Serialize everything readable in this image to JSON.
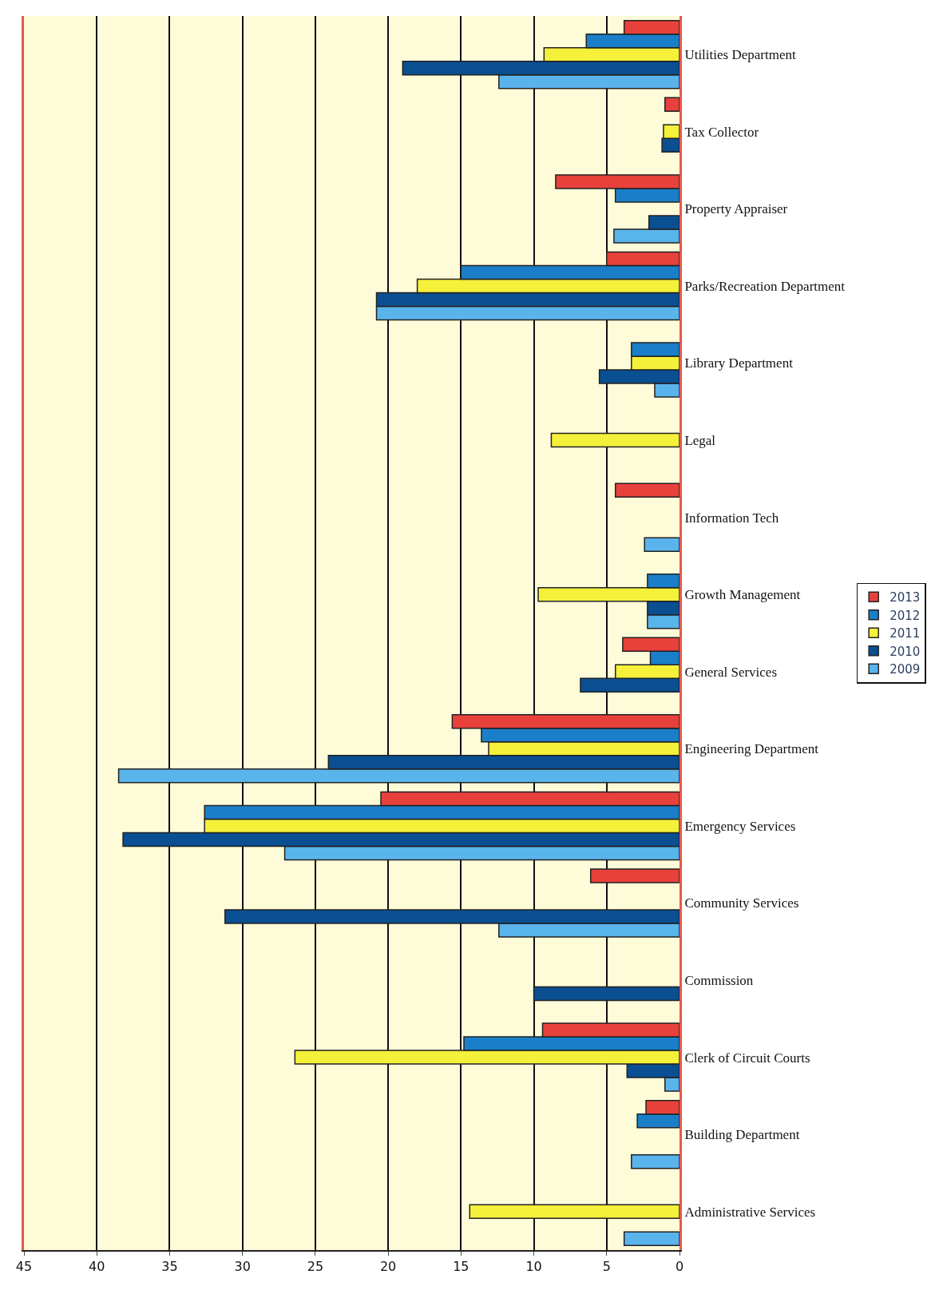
{
  "chart_data": {
    "type": "bar",
    "orientation": "horizontal",
    "categories": [
      "Utilities Department",
      "Tax Collector",
      "Property Appraiser",
      "Parks/Recreation Department",
      "Library Department",
      "Legal",
      "Information Tech",
      "Growth Management",
      "General Services",
      "Engineering Department",
      "Emergency Services",
      "Community Services",
      "Commission",
      "Clerk of Circuit Courts",
      "Building Department",
      "Administrative Services"
    ],
    "series": [
      {
        "name": "2009",
        "color": "#5ab4ec",
        "values": [
          12.4,
          null,
          4.5,
          20.8,
          1.7,
          null,
          2.4,
          2.2,
          null,
          38.5,
          27.1,
          12.4,
          null,
          1.0,
          3.3,
          3.8
        ]
      },
      {
        "name": "2010",
        "color": "#0a4f92",
        "values": [
          19.0,
          1.2,
          2.1,
          20.8,
          5.5,
          null,
          null,
          2.2,
          6.8,
          24.1,
          38.2,
          31.2,
          10.0,
          3.6,
          null,
          null
        ]
      },
      {
        "name": "2011",
        "color": "#f5f03a",
        "values": [
          9.3,
          1.1,
          null,
          18.0,
          3.3,
          8.8,
          null,
          9.7,
          4.4,
          13.1,
          32.6,
          null,
          null,
          26.4,
          null,
          14.4
        ]
      },
      {
        "name": "2012",
        "color": "#1a7fc8",
        "values": [
          6.4,
          null,
          4.4,
          15.0,
          3.3,
          null,
          null,
          2.2,
          2.0,
          13.6,
          32.6,
          null,
          null,
          14.8,
          2.9,
          null
        ]
      },
      {
        "name": "2013",
        "color": "#e8413c",
        "values": [
          3.8,
          1.0,
          8.5,
          5.0,
          null,
          null,
          4.4,
          null,
          3.9,
          15.6,
          20.5,
          6.1,
          null,
          9.4,
          2.3,
          null
        ]
      }
    ],
    "xlim": [
      45,
      0
    ],
    "xticks": [
      0,
      5,
      10,
      15,
      20,
      25,
      30,
      35,
      40,
      45
    ],
    "grid": "x",
    "legend": "right"
  }
}
